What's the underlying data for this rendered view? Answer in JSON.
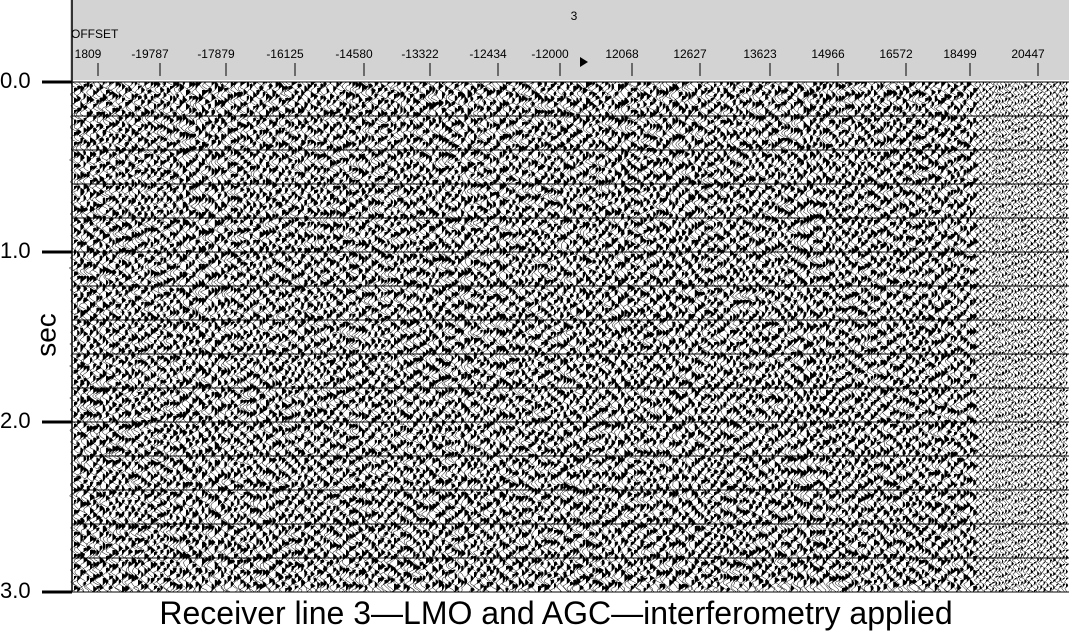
{
  "header": {
    "receiver_line": "3",
    "axis_name": "OFFSET",
    "offsets": [
      "1809",
      "-19787",
      "-17879",
      "-16125",
      "-14580",
      "-13322",
      "-12434",
      "-12000",
      "12068",
      "12627",
      "13623",
      "14966",
      "16572",
      "18499",
      "20447"
    ]
  },
  "time_axis": {
    "label": "sec",
    "ticks": [
      "0.0",
      "1.0",
      "2.0",
      "3.0"
    ]
  },
  "caption": "Receiver line 3—LMO and AGC—interferometry applied"
}
